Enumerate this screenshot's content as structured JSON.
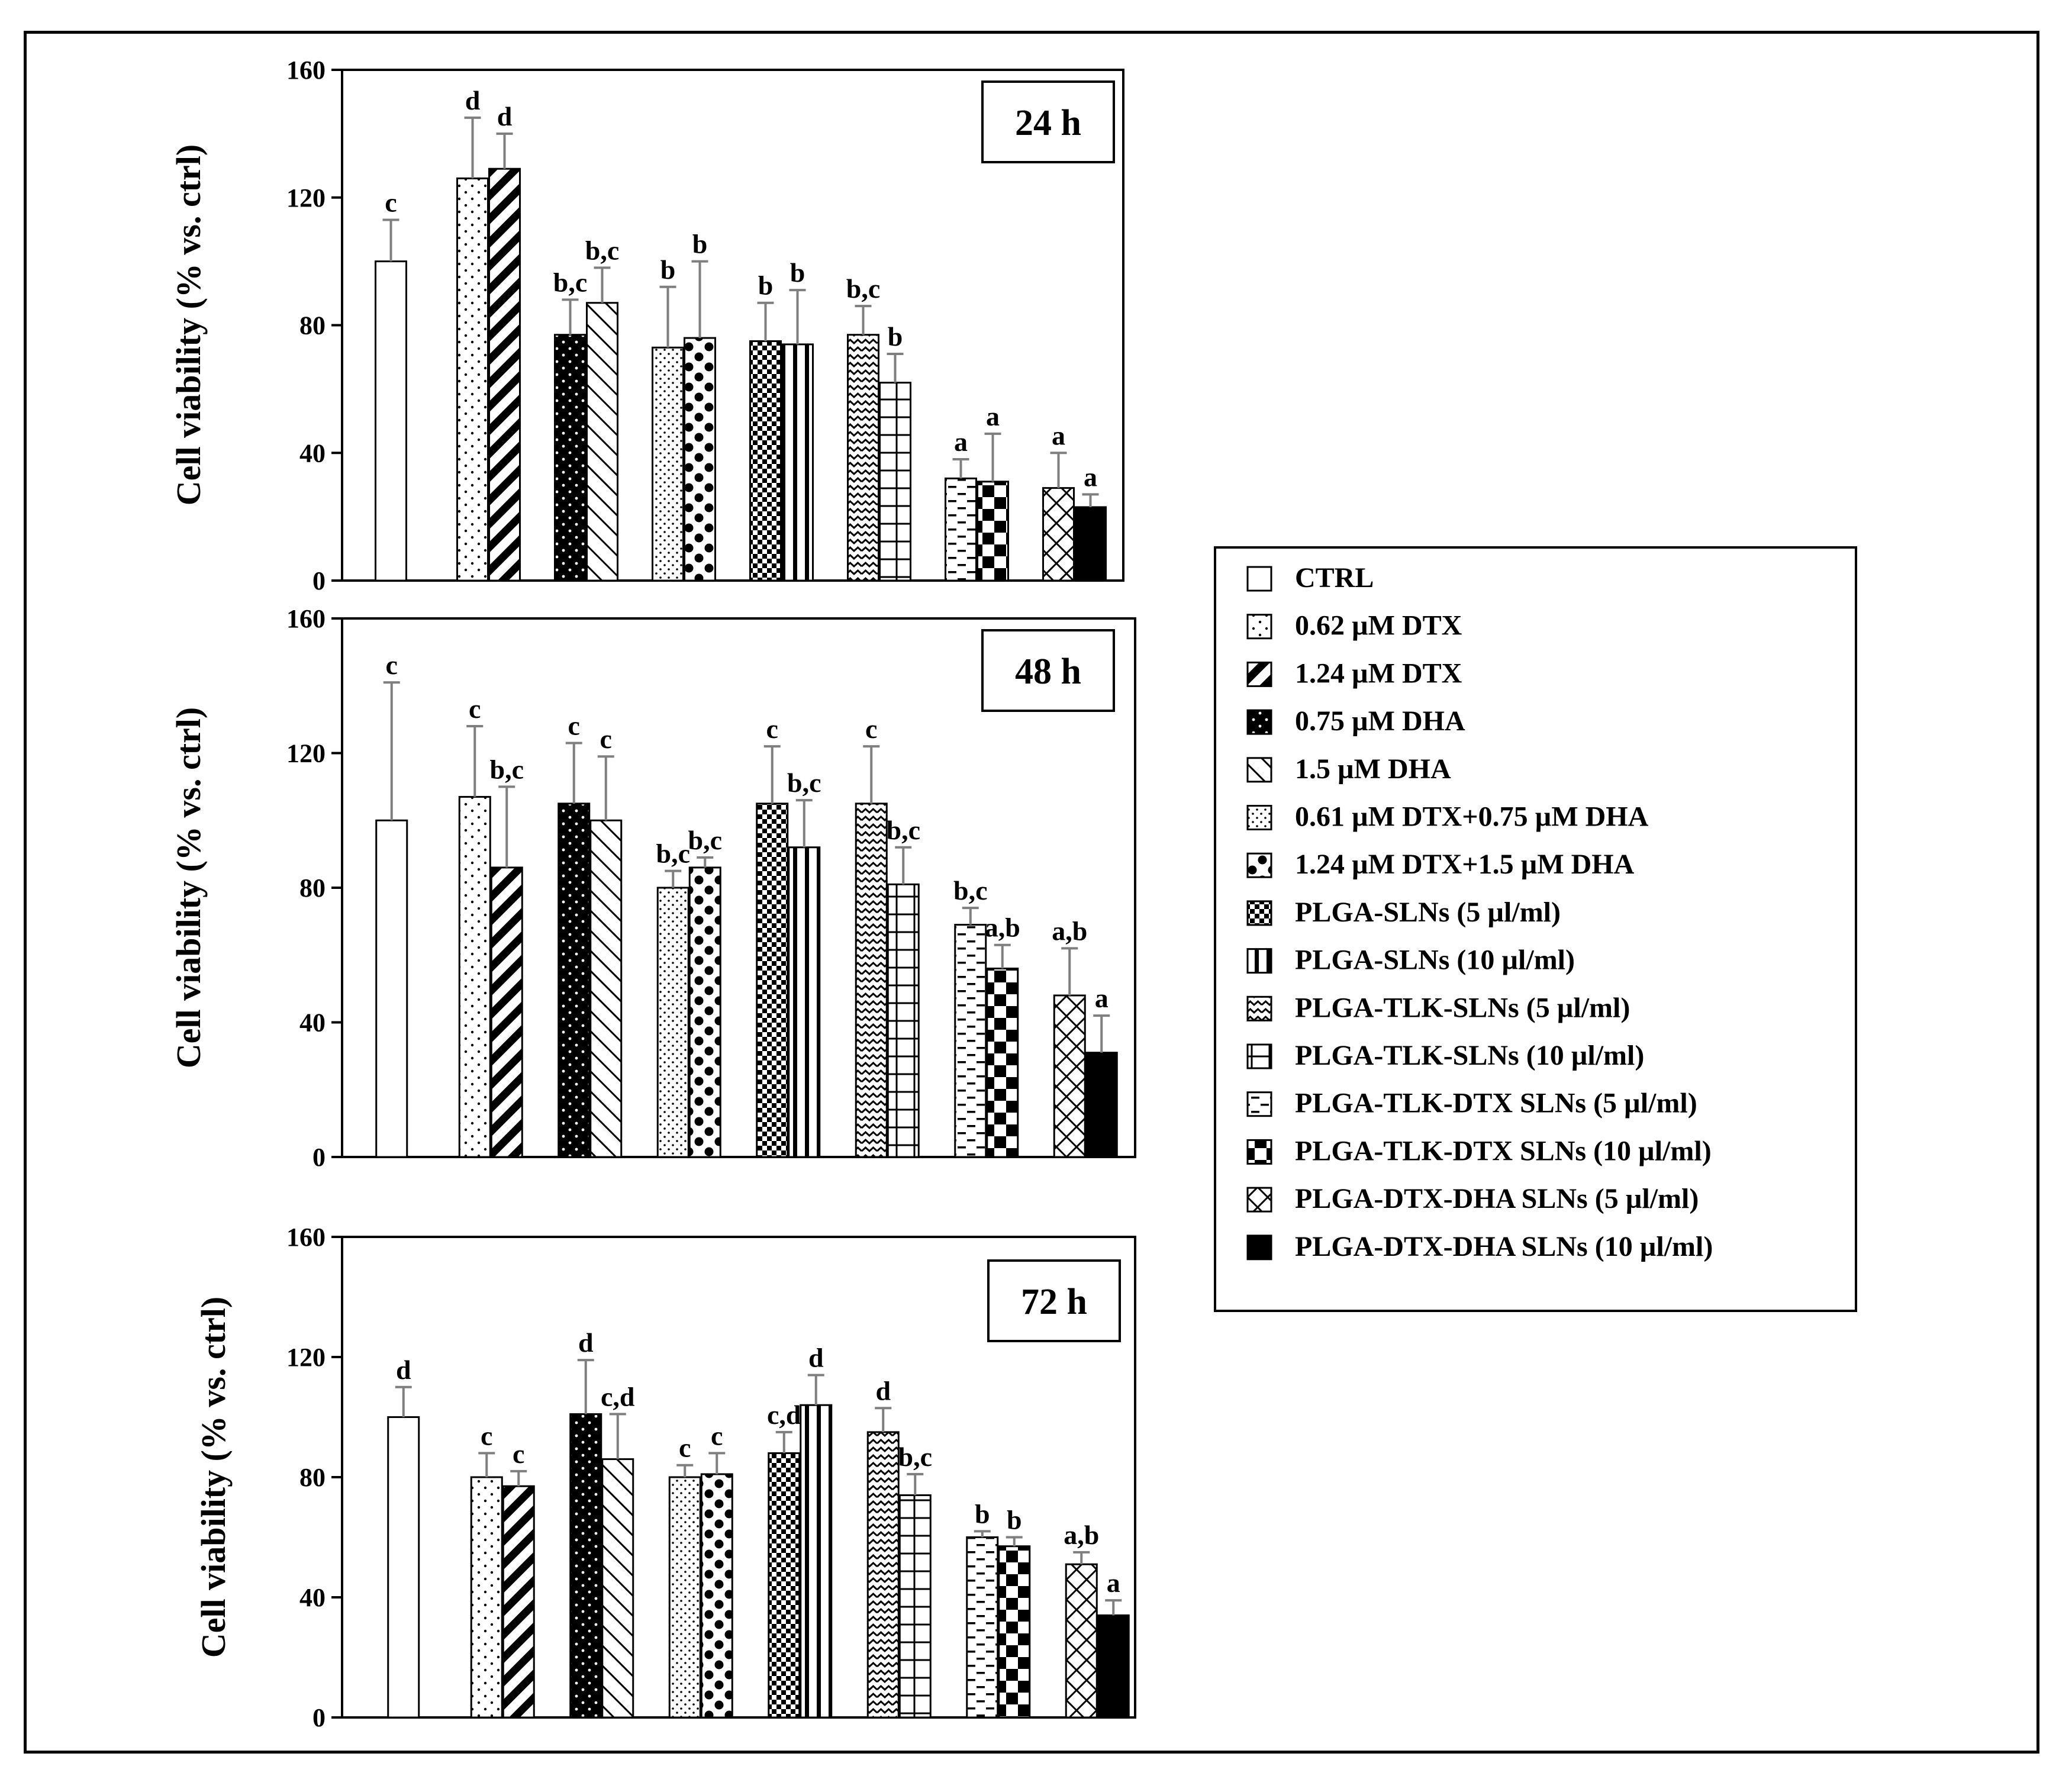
{
  "chart_data": {
    "type": "bar",
    "ylabel": "Cell viability (% vs. ctrl)",
    "ylim": [
      0,
      160
    ],
    "yticks": [
      0,
      40,
      80,
      120,
      160
    ],
    "legend": {
      "placement": "right",
      "entries": [
        {
          "label": "CTRL",
          "pattern": "white"
        },
        {
          "label": "0.62 µM DTX",
          "pattern": "dots"
        },
        {
          "label": "1.24 µM DTX",
          "pattern": "diag-thick"
        },
        {
          "label": "0.75 µM DHA",
          "pattern": "black-dots"
        },
        {
          "label": "1.5 µM DHA",
          "pattern": "diag-thin"
        },
        {
          "label": "0.61 µM DTX+0.75 µM DHA",
          "pattern": "fine-dots"
        },
        {
          "label": "1.24 µM DTX+1.5 µM DHA",
          "pattern": "big-dots"
        },
        {
          "label": "PLGA-SLNs (5 µl/ml)",
          "pattern": "checker"
        },
        {
          "label": "PLGA-SLNs (10 µl/ml)",
          "pattern": "vlines"
        },
        {
          "label": "PLGA-TLK-SLNs (5 µl/ml)",
          "pattern": "wave"
        },
        {
          "label": "PLGA-TLK-SLNs (10 µl/ml)",
          "pattern": "grid"
        },
        {
          "label": "PLGA-TLK-DTX SLNs (5 µl/ml)",
          "pattern": "dashes"
        },
        {
          "label": "PLGA-TLK-DTX SLNs (10 µl/ml)",
          "pattern": "big-checker"
        },
        {
          "label": "PLGA-DTX-DHA SLNs (5 µl/ml)",
          "pattern": "diamond"
        },
        {
          "label": "PLGA-DTX-DHA SLNs (10 µl/ml)",
          "pattern": "black"
        }
      ]
    },
    "panels": [
      {
        "title": "24 h",
        "values": [
          100,
          126,
          129,
          77,
          87,
          73,
          76,
          75,
          74,
          77,
          62,
          32,
          31,
          29,
          23
        ],
        "errors": [
          13,
          19,
          11,
          11,
          11,
          19,
          24,
          12,
          17,
          9,
          9,
          6,
          15,
          11,
          4
        ],
        "labels": [
          "c",
          "d",
          "d",
          "b,c",
          "b,c",
          "b",
          "b",
          "b",
          "b",
          "b,c",
          "b",
          "a",
          "a",
          "a",
          "a"
        ]
      },
      {
        "title": "48 h",
        "values": [
          100,
          107,
          86,
          105,
          100,
          80,
          86,
          105,
          92,
          105,
          81,
          69,
          56,
          48,
          31
        ],
        "errors": [
          41,
          21,
          24,
          18,
          19,
          5,
          3,
          17,
          14,
          17,
          11,
          5,
          7,
          14,
          11
        ],
        "labels": [
          "c",
          "c",
          "b,c",
          "c",
          "c",
          "b,c",
          "b,c",
          "c",
          "b,c",
          "c",
          "b,c",
          "b,c",
          "a,b",
          "a,b",
          "a"
        ]
      },
      {
        "title": "72 h",
        "values": [
          100,
          80,
          77,
          101,
          86,
          80,
          81,
          88,
          104,
          95,
          74,
          60,
          57,
          51,
          34
        ],
        "errors": [
          10,
          8,
          5,
          18,
          15,
          4,
          7,
          7,
          10,
          8,
          7,
          2,
          3,
          4,
          5
        ],
        "labels": [
          "d",
          "c",
          "c",
          "d",
          "c,d",
          "c",
          "c",
          "c,d",
          "d",
          "d",
          "b,c",
          "b",
          "b",
          "a,b",
          "a"
        ]
      }
    ]
  }
}
